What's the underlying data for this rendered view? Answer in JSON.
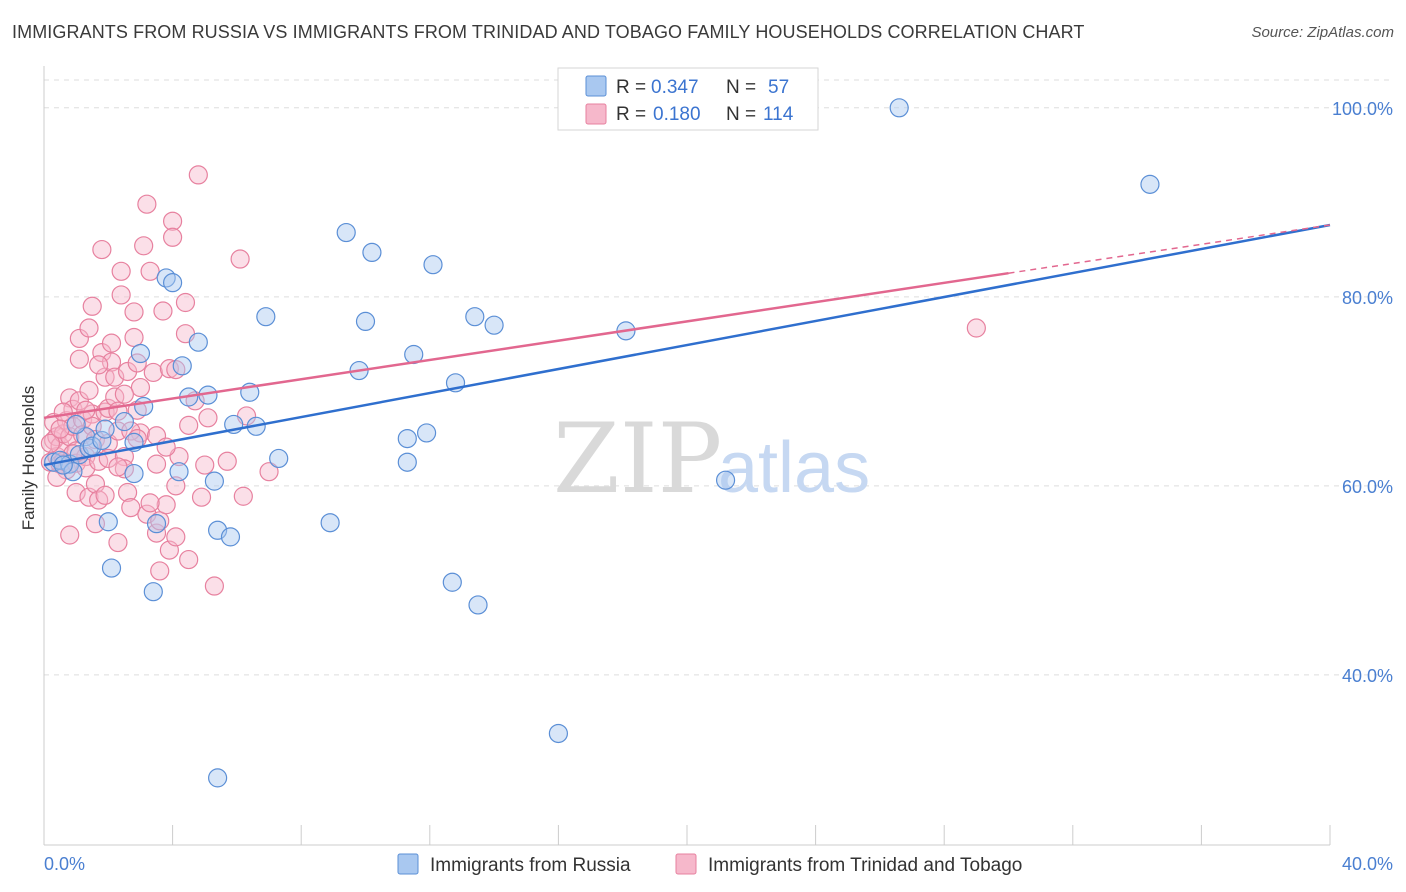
{
  "header": {
    "title": "IMMIGRANTS FROM RUSSIA VS IMMIGRANTS FROM TRINIDAD AND TOBAGO FAMILY HOUSEHOLDS CORRELATION CHART",
    "source": "Source: ZipAtlas.com"
  },
  "watermark": {
    "zip": "ZIP",
    "atlas": "atlas"
  },
  "colors": {
    "russia_fill": "#a9c8f0",
    "russia_stroke": "#5b8fd6",
    "russia_line": "#2f6fce",
    "tt_fill": "#f6b8cb",
    "tt_stroke": "#e7819f",
    "tt_line": "#e2678f",
    "grid": "#dddddd",
    "tick_text": "#4a7fd1"
  },
  "legend_top": {
    "rows": [
      {
        "r_label": "R =",
        "r_value": "0.347",
        "n_label": "N =",
        "n_value": "57"
      },
      {
        "r_label": "R =",
        "r_value": "0.180",
        "n_label": "N =",
        "n_value": "114"
      }
    ]
  },
  "chart_data": {
    "type": "scatter",
    "title": "IMMIGRANTS FROM RUSSIA VS IMMIGRANTS FROM TRINIDAD AND TOBAGO FAMILY HOUSEHOLDS CORRELATION CHART",
    "xlabel": "",
    "ylabel": "Family Households",
    "xlim": [
      0,
      40
    ],
    "ylim": [
      22,
      104
    ],
    "x_tick_labels": [
      "0.0%",
      "40.0%"
    ],
    "y_ticks": [
      40,
      60,
      80,
      100
    ],
    "y_tick_labels": [
      "40.0%",
      "60.0%",
      "80.0%",
      "100.0%"
    ],
    "grid": true,
    "legend_position": "top-center",
    "series": [
      {
        "name": "Immigrants from Russia",
        "R": 0.347,
        "N": 57,
        "trend": {
          "x0": 0,
          "y0": 62.2,
          "x1": 40,
          "y1": 87.6
        },
        "points": [
          [
            0.3,
            62.5
          ],
          [
            0.5,
            62.7
          ],
          [
            0.8,
            62.3
          ],
          [
            0.9,
            61.5
          ],
          [
            1.1,
            63.3
          ],
          [
            1.3,
            65.2
          ],
          [
            1.4,
            64.0
          ],
          [
            1.5,
            64.2
          ],
          [
            1.8,
            64.8
          ],
          [
            1.9,
            66.0
          ],
          [
            2.0,
            56.2
          ],
          [
            2.5,
            66.8
          ],
          [
            2.8,
            61.3
          ],
          [
            3.0,
            74.0
          ],
          [
            3.1,
            68.4
          ],
          [
            3.5,
            56.0
          ],
          [
            3.8,
            82.0
          ],
          [
            4.0,
            81.5
          ],
          [
            4.2,
            61.5
          ],
          [
            4.3,
            72.7
          ],
          [
            4.5,
            69.4
          ],
          [
            4.8,
            75.2
          ],
          [
            5.1,
            69.6
          ],
          [
            5.3,
            60.5
          ],
          [
            5.4,
            55.3
          ],
          [
            5.8,
            54.6
          ],
          [
            5.9,
            66.5
          ],
          [
            6.4,
            69.9
          ],
          [
            6.6,
            66.3
          ],
          [
            6.9,
            77.9
          ],
          [
            7.3,
            62.9
          ],
          [
            8.9,
            56.1
          ],
          [
            9.4,
            86.8
          ],
          [
            9.8,
            72.2
          ],
          [
            10.0,
            77.4
          ],
          [
            10.2,
            84.7
          ],
          [
            11.3,
            65.0
          ],
          [
            11.3,
            62.5
          ],
          [
            11.5,
            73.9
          ],
          [
            11.9,
            65.6
          ],
          [
            12.1,
            83.4
          ],
          [
            12.7,
            49.8
          ],
          [
            12.8,
            70.9
          ],
          [
            13.4,
            77.9
          ],
          [
            13.5,
            47.4
          ],
          [
            14.0,
            77.0
          ],
          [
            16.0,
            33.8
          ],
          [
            18.1,
            76.4
          ],
          [
            21.2,
            60.6
          ],
          [
            26.6,
            100.0
          ],
          [
            34.4,
            91.9
          ],
          [
            2.1,
            51.3
          ],
          [
            3.4,
            48.8
          ],
          [
            5.4,
            29.1
          ],
          [
            1.0,
            66.5
          ],
          [
            0.6,
            62.2
          ],
          [
            2.8,
            64.6
          ]
        ]
      },
      {
        "name": "Immigrants from Trinidad and Tobago",
        "R": 0.18,
        "N": 114,
        "trend": {
          "x0": 0,
          "y0": 67.2,
          "x1": 40,
          "y1": 87.6,
          "solid_to_x": 30.0
        },
        "points": [
          [
            0.2,
            62.5
          ],
          [
            0.3,
            64.8
          ],
          [
            0.3,
            66.7
          ],
          [
            0.4,
            65.2
          ],
          [
            0.4,
            63.1
          ],
          [
            0.5,
            62.3
          ],
          [
            0.5,
            64.2
          ],
          [
            0.6,
            65.5
          ],
          [
            0.6,
            62.6
          ],
          [
            0.7,
            61.7
          ],
          [
            0.7,
            66.9
          ],
          [
            0.8,
            69.3
          ],
          [
            0.8,
            65.2
          ],
          [
            0.8,
            54.8
          ],
          [
            0.9,
            68.1
          ],
          [
            0.9,
            66.3
          ],
          [
            1.0,
            63.7
          ],
          [
            1.0,
            62.4
          ],
          [
            1.0,
            59.3
          ],
          [
            1.1,
            73.4
          ],
          [
            1.1,
            75.6
          ],
          [
            1.1,
            69.0
          ],
          [
            1.2,
            67.0
          ],
          [
            1.2,
            65.4
          ],
          [
            1.3,
            63.1
          ],
          [
            1.3,
            61.9
          ],
          [
            1.4,
            58.8
          ],
          [
            1.4,
            76.7
          ],
          [
            1.5,
            79.0
          ],
          [
            1.5,
            67.6
          ],
          [
            1.5,
            66.3
          ],
          [
            1.6,
            64.9
          ],
          [
            1.6,
            60.2
          ],
          [
            1.7,
            62.6
          ],
          [
            1.7,
            58.5
          ],
          [
            1.8,
            85.0
          ],
          [
            1.8,
            74.1
          ],
          [
            1.9,
            71.5
          ],
          [
            1.9,
            67.8
          ],
          [
            2.0,
            68.2
          ],
          [
            2.0,
            64.5
          ],
          [
            2.0,
            62.9
          ],
          [
            2.1,
            75.1
          ],
          [
            2.1,
            73.1
          ],
          [
            2.2,
            71.5
          ],
          [
            2.2,
            69.4
          ],
          [
            2.3,
            67.9
          ],
          [
            2.3,
            65.8
          ],
          [
            2.3,
            54.0
          ],
          [
            2.4,
            82.7
          ],
          [
            2.4,
            80.2
          ],
          [
            2.5,
            63.1
          ],
          [
            2.5,
            61.8
          ],
          [
            2.6,
            72.1
          ],
          [
            2.6,
            59.3
          ],
          [
            2.7,
            57.7
          ],
          [
            2.8,
            78.4
          ],
          [
            2.8,
            75.7
          ],
          [
            2.9,
            73.0
          ],
          [
            2.9,
            68.0
          ],
          [
            3.0,
            65.6
          ],
          [
            3.1,
            85.4
          ],
          [
            3.2,
            89.8
          ],
          [
            3.2,
            57.0
          ],
          [
            3.3,
            82.7
          ],
          [
            3.4,
            72.0
          ],
          [
            3.5,
            65.3
          ],
          [
            3.5,
            62.3
          ],
          [
            3.5,
            55.0
          ],
          [
            3.6,
            56.3
          ],
          [
            3.7,
            78.5
          ],
          [
            3.8,
            58.0
          ],
          [
            3.9,
            72.4
          ],
          [
            3.9,
            53.2
          ],
          [
            4.0,
            88.0
          ],
          [
            4.0,
            86.3
          ],
          [
            4.1,
            72.3
          ],
          [
            4.1,
            60.0
          ],
          [
            4.2,
            63.1
          ],
          [
            4.4,
            79.4
          ],
          [
            4.4,
            76.1
          ],
          [
            4.5,
            66.4
          ],
          [
            4.5,
            52.2
          ],
          [
            4.8,
            92.9
          ],
          [
            4.9,
            58.8
          ],
          [
            5.1,
            67.2
          ],
          [
            5.3,
            49.4
          ],
          [
            5.7,
            62.6
          ],
          [
            6.1,
            84.0
          ],
          [
            6.2,
            58.9
          ],
          [
            6.3,
            67.4
          ],
          [
            7.0,
            61.5
          ],
          [
            29.0,
            76.7
          ],
          [
            1.3,
            68.0
          ],
          [
            0.9,
            63.4
          ],
          [
            1.6,
            56.0
          ],
          [
            2.7,
            65.8
          ],
          [
            3.0,
            70.4
          ],
          [
            4.7,
            69.0
          ],
          [
            3.3,
            58.2
          ],
          [
            0.4,
            60.9
          ],
          [
            0.2,
            64.5
          ],
          [
            1.9,
            59.0
          ],
          [
            2.3,
            62.0
          ],
          [
            3.6,
            51.0
          ],
          [
            4.1,
            54.6
          ],
          [
            5.0,
            62.2
          ],
          [
            2.5,
            69.7
          ],
          [
            1.4,
            70.1
          ],
          [
            0.6,
            67.8
          ],
          [
            1.7,
            72.8
          ],
          [
            2.9,
            65.0
          ],
          [
            3.8,
            64.1
          ],
          [
            0.5,
            66.0
          ]
        ]
      }
    ]
  },
  "bottom_legend": {
    "items": [
      {
        "label": "Immigrants from Russia"
      },
      {
        "label": "Immigrants from Trinidad and Tobago"
      }
    ]
  }
}
